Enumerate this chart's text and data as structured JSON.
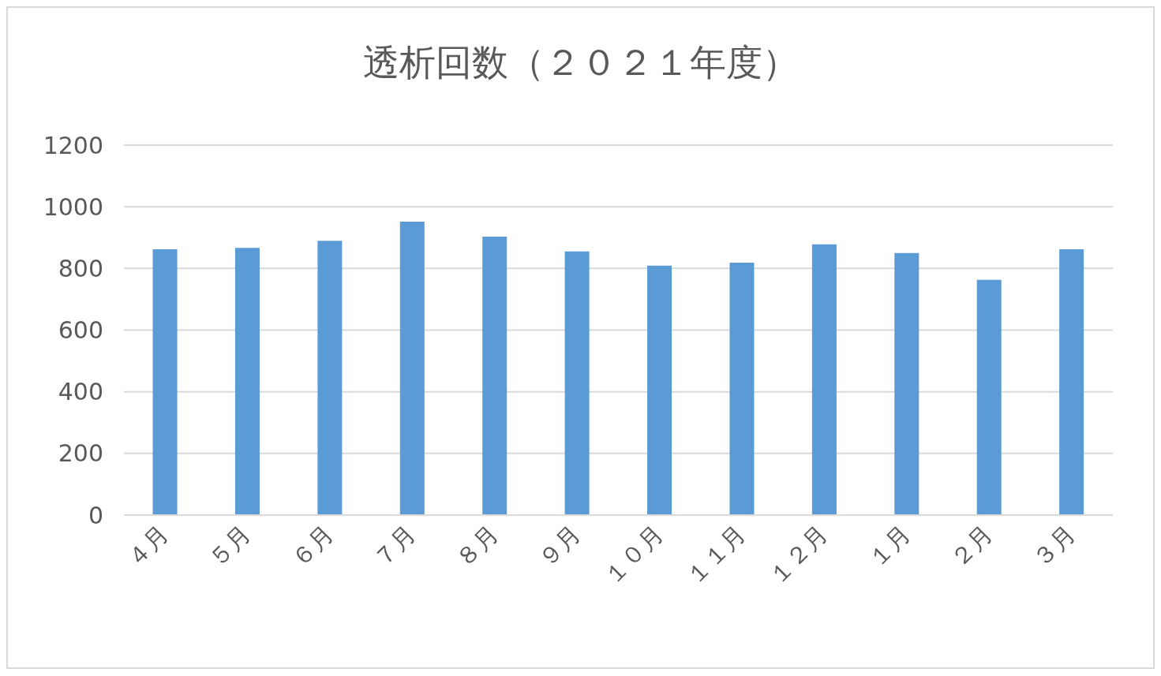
{
  "chart_data": {
    "type": "bar",
    "title": "透析回数（２０２１年度）",
    "categories": [
      "４月",
      "５月",
      "６月",
      "７月",
      "８月",
      "９月",
      "１０月",
      "１１月",
      "１２月",
      "１月",
      "２月",
      "３月"
    ],
    "values": [
      862,
      867,
      890,
      952,
      903,
      855,
      809,
      819,
      878,
      850,
      763,
      862
    ],
    "color": "#5b9bd5",
    "ylim": [
      0,
      1200
    ],
    "yticks": [
      0,
      200,
      400,
      600,
      800,
      1000,
      1200
    ],
    "grid": "y"
  }
}
